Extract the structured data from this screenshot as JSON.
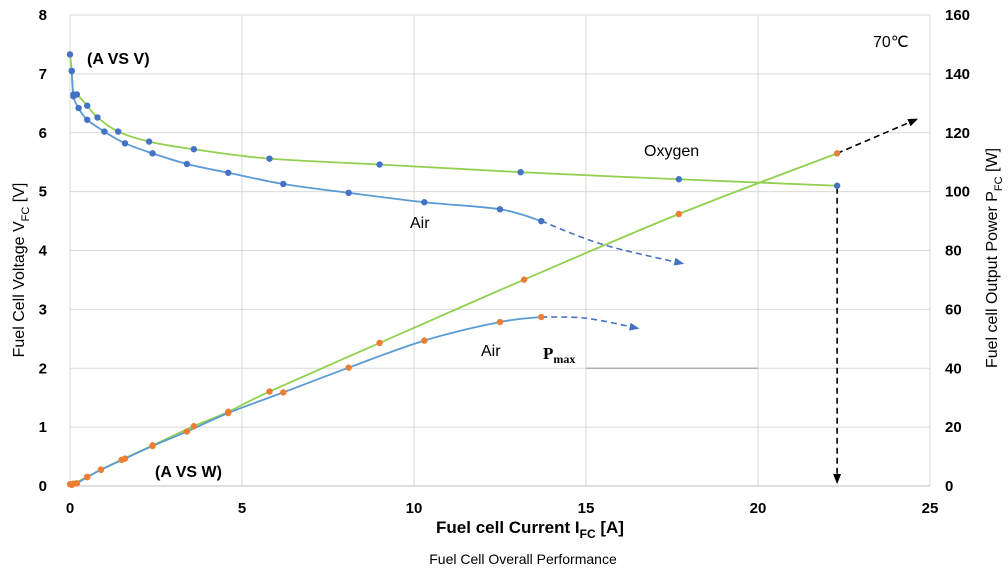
{
  "chart_data": {
    "type": "line",
    "caption": "Fuel Cell Overall Performance",
    "x_axis": {
      "label_main": "Fuel cell Current I",
      "label_sub": "FC",
      "label_unit": " [A]",
      "range": [
        0,
        25
      ],
      "ticks": [
        "0",
        "5",
        "10",
        "15",
        "20",
        "25"
      ]
    },
    "y_left": {
      "label_main": "Fuel Cell Voltage V",
      "label_sub": "FC",
      "label_unit": " [V]",
      "range": [
        0,
        8
      ],
      "ticks": [
        "0",
        "1",
        "2",
        "3",
        "4",
        "5",
        "6",
        "7",
        "8"
      ]
    },
    "y_right": {
      "label_main": "Fuel cell Output Power P",
      "label_sub": "FC",
      "label_unit": " [W]",
      "range": [
        0,
        160
      ],
      "ticks": [
        "0",
        "20",
        "40",
        "60",
        "80",
        "100",
        "120",
        "140",
        "160"
      ]
    },
    "grid": true,
    "series": [
      {
        "name": "Oxygen",
        "axis": "left",
        "color": "#92d050",
        "marker_color": "#4472c4",
        "points": [
          [
            0.0,
            7.33
          ],
          [
            0.05,
            7.05
          ],
          [
            0.1,
            6.65
          ],
          [
            0.2,
            6.65
          ],
          [
            0.5,
            6.46
          ],
          [
            0.8,
            6.26
          ],
          [
            1.4,
            6.02
          ],
          [
            2.3,
            5.85
          ],
          [
            3.6,
            5.72
          ],
          [
            5.8,
            5.56
          ],
          [
            9.0,
            5.46
          ],
          [
            13.1,
            5.33
          ],
          [
            17.7,
            5.21
          ],
          [
            22.3,
            5.1
          ]
        ]
      },
      {
        "name": "Air",
        "axis": "left",
        "color": "#5b9bd5",
        "marker_color": "#4472c4",
        "points": [
          [
            0.05,
            7.05
          ],
          [
            0.1,
            6.62
          ],
          [
            0.25,
            6.42
          ],
          [
            0.5,
            6.22
          ],
          [
            1.0,
            6.02
          ],
          [
            1.6,
            5.82
          ],
          [
            2.4,
            5.65
          ],
          [
            3.4,
            5.47
          ],
          [
            4.6,
            5.32
          ],
          [
            6.2,
            5.13
          ],
          [
            8.1,
            4.98
          ],
          [
            10.3,
            4.82
          ],
          [
            12.5,
            4.7
          ],
          [
            13.7,
            4.5
          ]
        ],
        "extrapolated": [
          [
            13.7,
            4.5
          ],
          [
            15.5,
            4.1
          ],
          [
            17.8,
            3.78
          ]
        ]
      },
      {
        "name": "Oxygen",
        "axis": "right",
        "color": "#92d050",
        "marker_color": "#ed7d31",
        "points": [
          [
            0.0,
            0.6
          ],
          [
            0.1,
            0.8
          ],
          [
            0.5,
            3.1
          ],
          [
            0.9,
            5.6
          ],
          [
            1.5,
            8.9
          ],
          [
            2.4,
            13.8
          ],
          [
            3.6,
            20.3
          ],
          [
            4.6,
            25.2
          ],
          [
            5.8,
            32.1
          ],
          [
            9.0,
            48.6
          ],
          [
            13.2,
            70.1
          ],
          [
            17.7,
            92.4
          ],
          [
            22.3,
            113.0
          ]
        ],
        "extrapolated": [
          [
            22.3,
            113.0
          ],
          [
            24.6,
            124.5
          ]
        ]
      },
      {
        "name": "Air",
        "axis": "right",
        "color": "#5b9bd5",
        "marker_color": "#ed7d31",
        "points": [
          [
            0.05,
            0.4
          ],
          [
            0.2,
            0.9
          ],
          [
            0.5,
            3.0
          ],
          [
            0.9,
            5.5
          ],
          [
            1.6,
            9.3
          ],
          [
            2.4,
            13.6
          ],
          [
            3.4,
            18.5
          ],
          [
            4.6,
            24.8
          ],
          [
            6.2,
            31.8
          ],
          [
            8.1,
            40.2
          ],
          [
            10.3,
            49.4
          ],
          [
            12.5,
            55.7
          ],
          [
            13.7,
            57.4
          ]
        ],
        "extrapolated": [
          [
            13.7,
            57.4
          ],
          [
            15.0,
            57.0
          ],
          [
            16.5,
            53.6
          ]
        ]
      }
    ],
    "annotations": {
      "av": "(A VS V)",
      "aw": "(A VS W)",
      "temp": "70℃",
      "oxygen": "Oxygen",
      "air_v": "Air",
      "air_p": "Air",
      "pmax_main": "P",
      "pmax_sub": "max"
    },
    "guide_lines": {
      "vertical_x": 22.3,
      "vertical_top_v": 5.1,
      "pmax_line_x": [
        15,
        20
      ],
      "pmax_line_w": 40
    },
    "colors": {
      "grid": "#d9d9d9",
      "dash": "#000000"
    }
  }
}
